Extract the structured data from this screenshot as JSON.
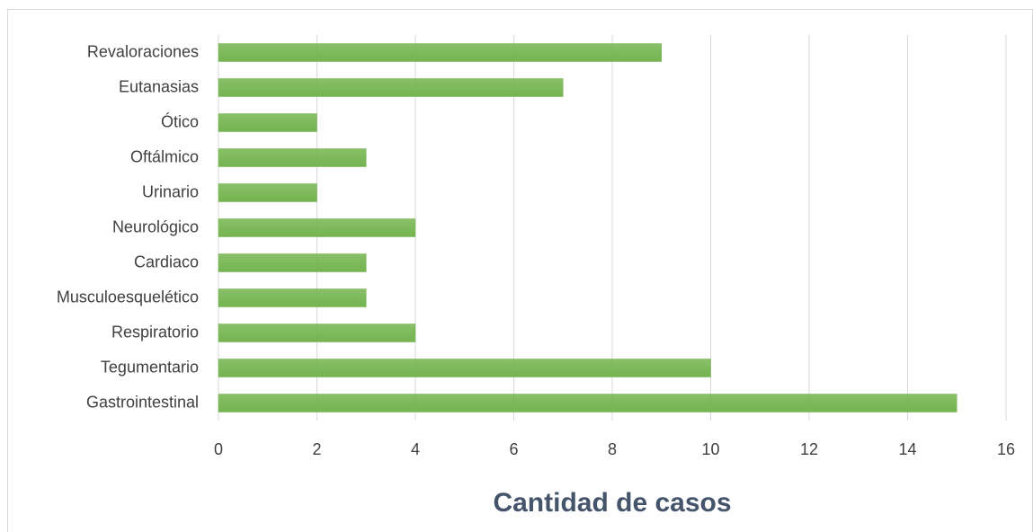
{
  "chart_data": {
    "type": "bar",
    "orientation": "horizontal",
    "categories": [
      "Revaloraciones",
      "Eutanasias",
      "Ótico",
      "Oftálmico",
      "Urinario",
      "Neurológico",
      "Cardiaco",
      "Musculoesquelético",
      "Respiratorio",
      "Tegumentario",
      "Gastrointestinal"
    ],
    "values": [
      9,
      7,
      2,
      3,
      2,
      4,
      3,
      3,
      4,
      10,
      15
    ],
    "color": "#74b44f",
    "xlabel": "Cantidad de casos",
    "xlim": [
      0,
      16
    ],
    "xticks": [
      0,
      2,
      4,
      6,
      8,
      10,
      12,
      14,
      16
    ],
    "grid": true
  }
}
